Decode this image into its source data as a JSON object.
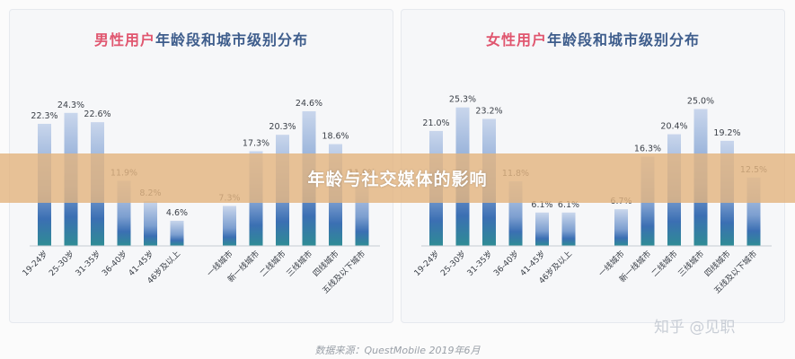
{
  "banner": {
    "title": "年龄与社交媒体的影响"
  },
  "source": "数据来源：QuestMobile 2019年6月",
  "watermark": "知乎 @见职",
  "colors": {
    "title_accent": "#e0566f",
    "title_main": "#3e5d8c",
    "bar_top": "#c9d6ec",
    "bar_mid": "#3b6fb3",
    "bar_bottom": "#2f8c95",
    "label": "#3a3f47"
  },
  "chart_data": [
    {
      "type": "bar",
      "title_prefix": "男性用户",
      "title_rest": "年龄段和城市级别分布",
      "groups": [
        {
          "categories": [
            "19-24岁",
            "25-30岁",
            "31-35岁",
            "36-40岁",
            "41-45岁",
            "46岁及以上"
          ],
          "values": [
            22.3,
            24.3,
            22.6,
            11.9,
            8.2,
            4.6
          ],
          "labels": [
            "22.3%",
            "24.3%",
            "22.6%",
            "11.9%",
            "8.2%",
            "4.6%"
          ]
        },
        {
          "categories": [
            "一线城市",
            "新一线城市",
            "二线城市",
            "三线城市",
            "四线城市",
            "五线及以下城市"
          ],
          "values": [
            7.3,
            17.3,
            20.3,
            24.6,
            18.6,
            11.9
          ],
          "labels": [
            "7.3%",
            "17.3%",
            "20.3%",
            "24.6%",
            "18.6%",
            "11.9%"
          ]
        }
      ],
      "unit": "%"
    },
    {
      "type": "bar",
      "title_prefix": "女性用户",
      "title_rest": "年龄段和城市级别分布",
      "groups": [
        {
          "categories": [
            "19-24岁",
            "25-30岁",
            "31-35岁",
            "36-40岁",
            "41-45岁",
            "46岁及以上"
          ],
          "values": [
            21.0,
            25.3,
            23.2,
            11.8,
            6.1,
            6.1
          ],
          "labels": [
            "21.0%",
            "25.3%",
            "23.2%",
            "11.8%",
            "6.1%",
            "6.1%"
          ]
        },
        {
          "categories": [
            "一线城市",
            "新一线城市",
            "二线城市",
            "三线城市",
            "四线城市",
            "五线及以下城市"
          ],
          "values": [
            6.7,
            16.3,
            20.4,
            25.0,
            19.2,
            12.5
          ],
          "labels": [
            "6.7%",
            "16.3%",
            "20.4%",
            "25.0%",
            "19.2%",
            "12.5%"
          ]
        }
      ],
      "unit": "%"
    }
  ]
}
